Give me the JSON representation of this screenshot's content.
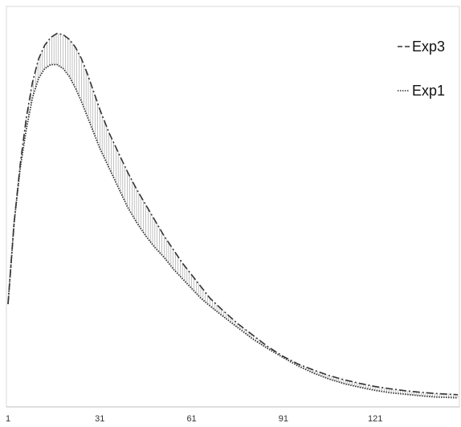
{
  "chart_data": {
    "type": "line",
    "title": "",
    "xlabel": "",
    "ylabel": "",
    "xlim": [
      1,
      148
    ],
    "ylim": [
      0,
      1
    ],
    "x_ticks": [
      "1",
      "31",
      "61",
      "91",
      "121"
    ],
    "grid": false,
    "legend_position": "top-right",
    "series": [
      {
        "name": "Exp3",
        "style": "dash-dot",
        "color": "#333333",
        "x": [
          1,
          3,
          5,
          7,
          9,
          11,
          13,
          15,
          17,
          19,
          21,
          23,
          25,
          27,
          29,
          31,
          34,
          37,
          40,
          43,
          46,
          49,
          52,
          55,
          58,
          61,
          64,
          67,
          71,
          76,
          81,
          86,
          91,
          96,
          101,
          106,
          111,
          116,
          121,
          126,
          131,
          136,
          141,
          148
        ],
        "values": [
          0.25,
          0.46,
          0.61,
          0.73,
          0.82,
          0.88,
          0.915,
          0.935,
          0.945,
          0.942,
          0.93,
          0.91,
          0.88,
          0.84,
          0.795,
          0.75,
          0.69,
          0.64,
          0.59,
          0.545,
          0.505,
          0.465,
          0.425,
          0.39,
          0.355,
          0.325,
          0.295,
          0.265,
          0.235,
          0.2,
          0.17,
          0.14,
          0.115,
          0.095,
          0.08,
          0.066,
          0.055,
          0.046,
          0.038,
          0.032,
          0.027,
          0.023,
          0.02,
          0.017
        ]
      },
      {
        "name": "Exp1",
        "style": "dotted",
        "color": "#333333",
        "x": [
          1,
          3,
          5,
          7,
          9,
          11,
          13,
          15,
          17,
          19,
          21,
          23,
          25,
          27,
          29,
          31,
          34,
          37,
          40,
          43,
          46,
          49,
          52,
          55,
          58,
          61,
          64,
          67,
          71,
          76,
          81,
          86,
          91,
          96,
          101,
          106,
          111,
          116,
          121,
          126,
          131,
          136,
          141,
          148
        ],
        "values": [
          0.25,
          0.46,
          0.6,
          0.7,
          0.78,
          0.83,
          0.855,
          0.865,
          0.865,
          0.855,
          0.835,
          0.805,
          0.77,
          0.73,
          0.69,
          0.65,
          0.6,
          0.55,
          0.5,
          0.46,
          0.425,
          0.395,
          0.37,
          0.34,
          0.315,
          0.29,
          0.265,
          0.245,
          0.22,
          0.19,
          0.16,
          0.135,
          0.112,
          0.09,
          0.072,
          0.057,
          0.045,
          0.036,
          0.028,
          0.022,
          0.018,
          0.014,
          0.011,
          0.009
        ]
      }
    ]
  }
}
